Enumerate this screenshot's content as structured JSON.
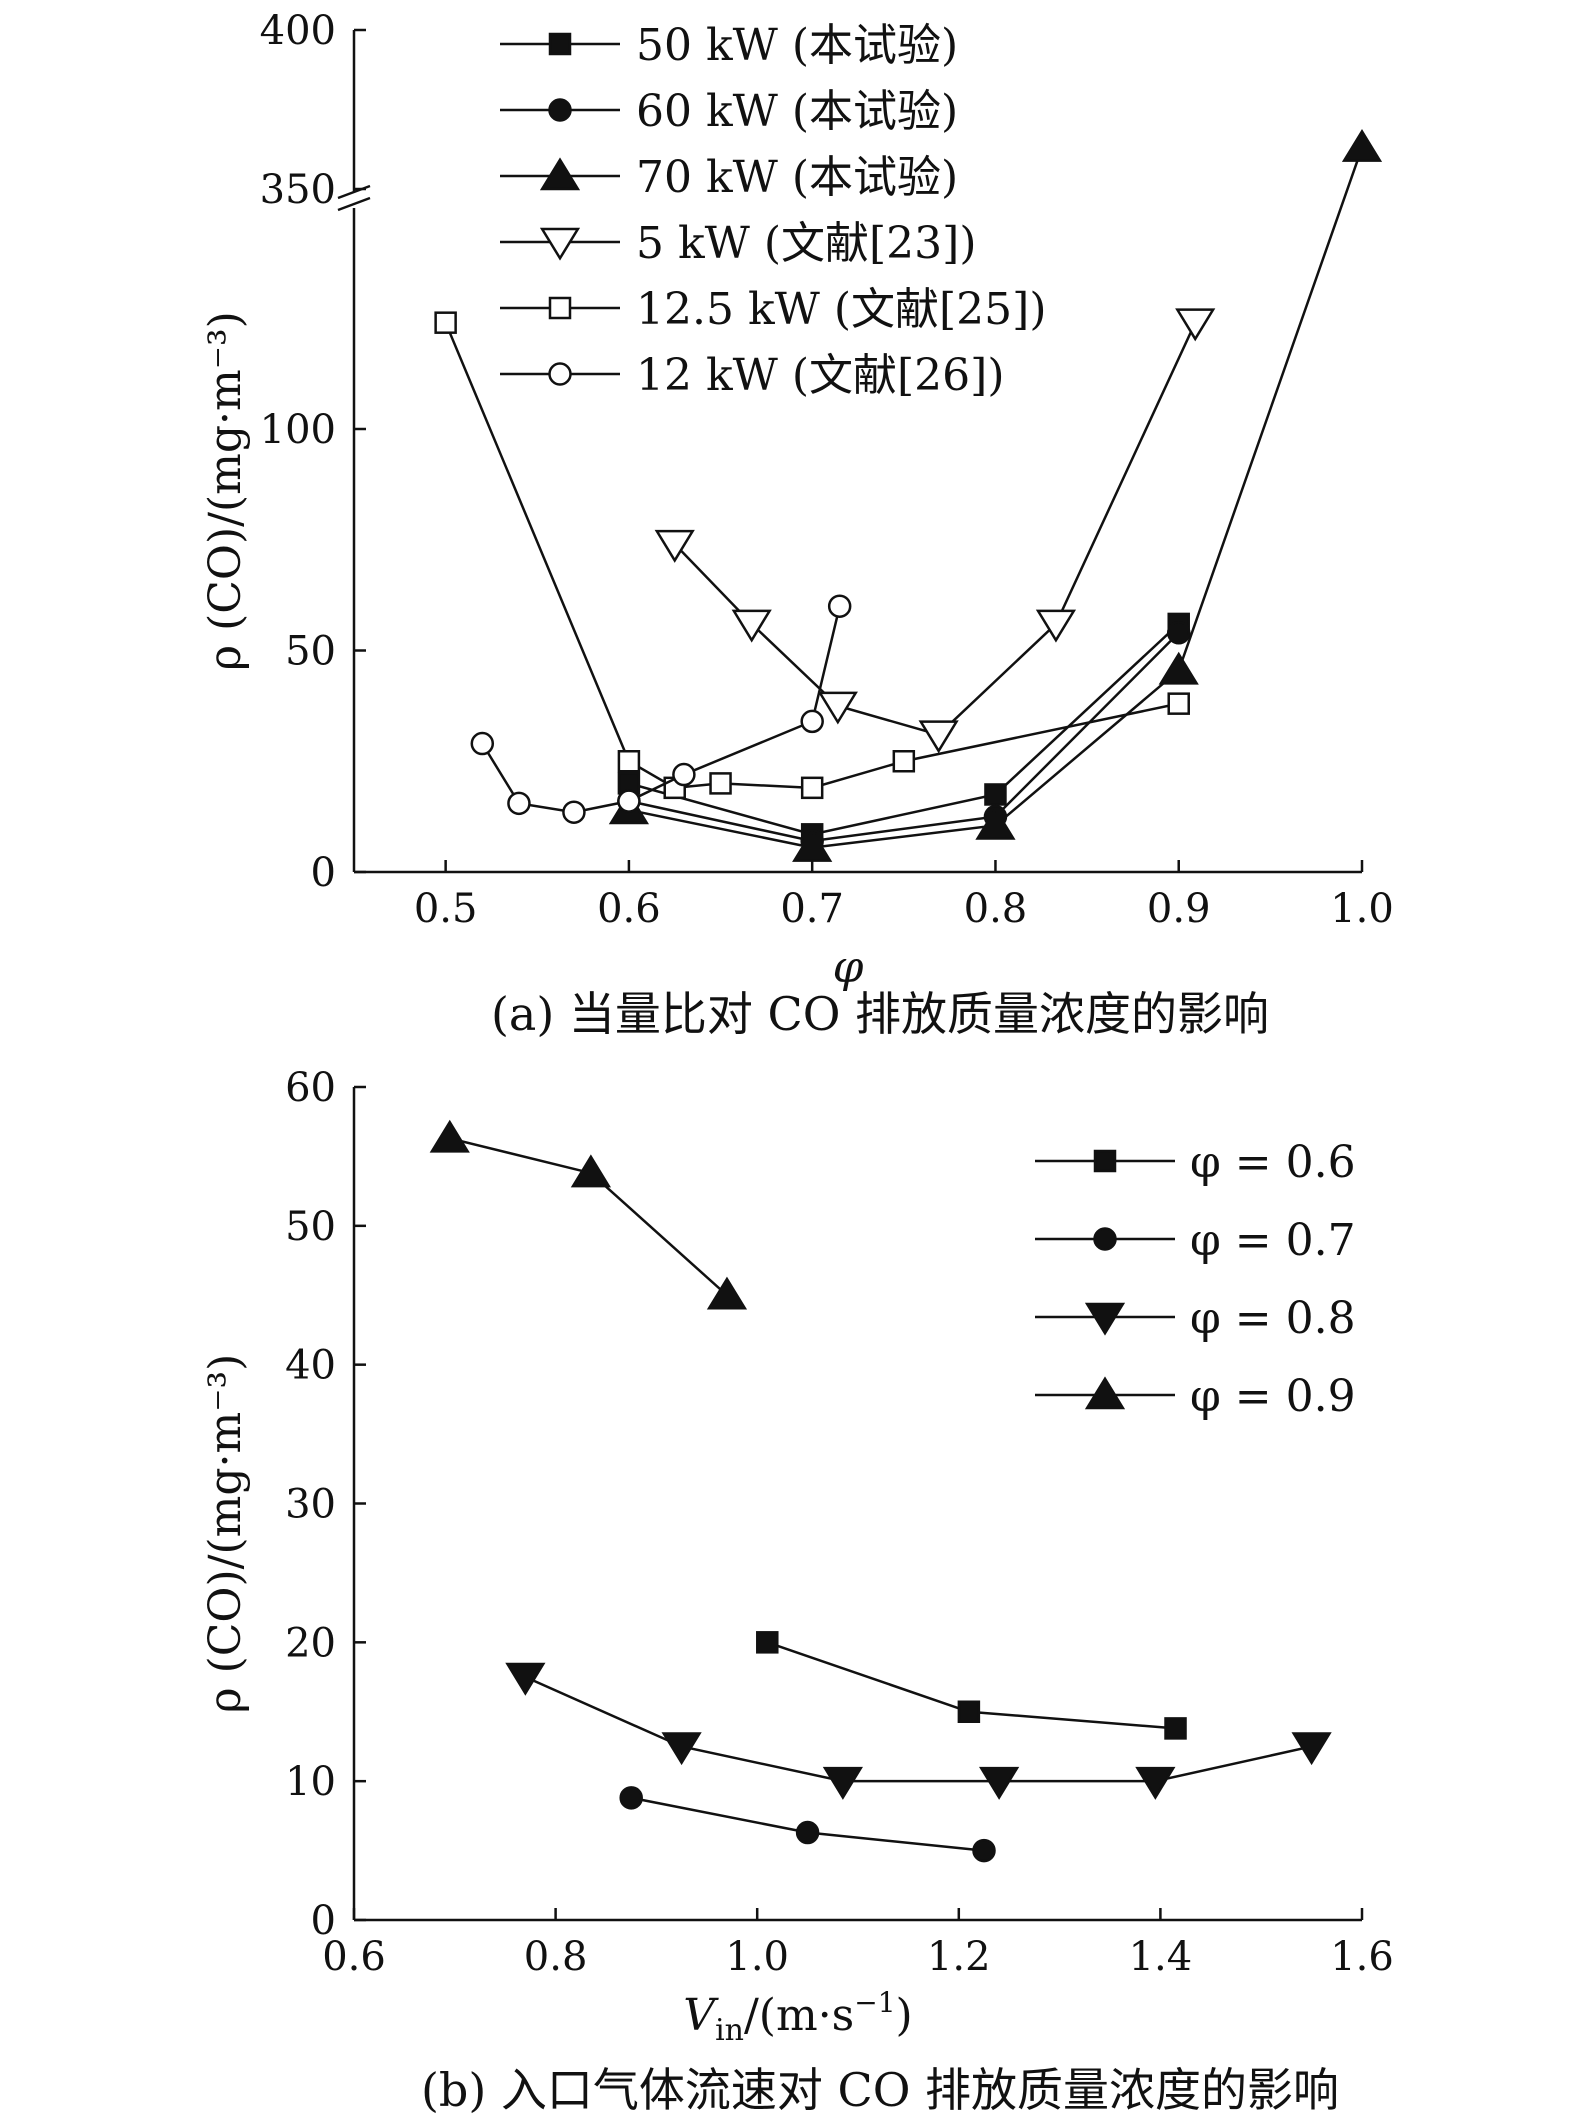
{
  "chart_data": [
    {
      "type": "line",
      "caption": "(a) 当量比对 CO 排放质量浓度的影响",
      "xlabel": "φ",
      "ylabel": "ρ (CO)/(mg·m⁻³)",
      "xlim": [
        0.45,
        1.0
      ],
      "x_ticks": [
        0.5,
        0.6,
        0.7,
        0.8,
        0.9,
        1.0
      ],
      "x_tick_labels": [
        "0.5",
        "0.6",
        "0.7",
        "0.8",
        "0.9",
        "1.0"
      ],
      "ylim_lower": [
        0,
        100
      ],
      "ylim_upper": [
        350,
        400
      ],
      "y_ticks": [
        0,
        50,
        100,
        350,
        400
      ],
      "y_tick_labels": [
        "0",
        "50",
        "100",
        "350",
        "400"
      ],
      "axis_break": true,
      "grid": false,
      "legend_position": "top",
      "series": [
        {
          "name": "50 kW (本试验)",
          "marker": "square-filled",
          "points": [
            [
              0.6,
              20
            ],
            [
              0.7,
              8.5
            ],
            [
              0.8,
              17.5
            ],
            [
              0.9,
              56
            ]
          ]
        },
        {
          "name": "60 kW (本试验)",
          "marker": "circle-filled",
          "points": [
            [
              0.6,
              16
            ],
            [
              0.7,
              7
            ],
            [
              0.8,
              12.5
            ],
            [
              0.9,
              54
            ]
          ]
        },
        {
          "name": "70 kW (本试验)",
          "marker": "triangle-up-filled",
          "points": [
            [
              0.6,
              14
            ],
            [
              0.7,
              5.5
            ],
            [
              0.8,
              10.5
            ],
            [
              0.9,
              45.5
            ],
            [
              1.0,
              363
            ]
          ]
        },
        {
          "name": "5 kW (文献[23])",
          "marker": "triangle-down-open",
          "points": [
            [
              0.625,
              74
            ],
            [
              0.667,
              56
            ],
            [
              0.714,
              37.5
            ],
            [
              0.769,
              31
            ],
            [
              0.833,
              56
            ],
            [
              0.909,
              124
            ]
          ]
        },
        {
          "name": "12.5 kW (文献[25])",
          "marker": "square-open",
          "points": [
            [
              0.5,
              124
            ],
            [
              0.6,
              25
            ],
            [
              0.625,
              19
            ],
            [
              0.65,
              20
            ],
            [
              0.7,
              19
            ],
            [
              0.75,
              25
            ],
            [
              0.9,
              38
            ]
          ]
        },
        {
          "name": "12 kW (文献[26])",
          "marker": "circle-open",
          "points": [
            [
              0.52,
              29
            ],
            [
              0.54,
              15.5
            ],
            [
              0.57,
              13.5
            ],
            [
              0.6,
              16
            ],
            [
              0.63,
              22
            ],
            [
              0.7,
              34
            ],
            [
              0.715,
              60
            ]
          ]
        }
      ]
    },
    {
      "type": "line",
      "caption": "(b) 入口气体流速对 CO 排放质量浓度的影响",
      "xlabel_main": "V",
      "xlabel_sub": "in",
      "xlabel_rest": "/(m·s",
      "xlabel_sup": "−1",
      "xlabel_end": ")",
      "ylabel": "ρ (CO)/(mg·m⁻³)",
      "xlim": [
        0.6,
        1.6
      ],
      "ylim": [
        0,
        60
      ],
      "x_ticks": [
        0.6,
        0.8,
        1.0,
        1.2,
        1.4,
        1.6
      ],
      "x_tick_labels": [
        "0.6",
        "0.8",
        "1.0",
        "1.2",
        "1.4",
        "1.6"
      ],
      "y_ticks": [
        0,
        10,
        20,
        30,
        40,
        50,
        60
      ],
      "y_tick_labels": [
        "0",
        "10",
        "20",
        "30",
        "40",
        "50",
        "60"
      ],
      "grid": false,
      "legend_position": "top-right",
      "series": [
        {
          "name": "φ = 0.6",
          "marker": "square-filled",
          "points": [
            [
              1.01,
              20
            ],
            [
              1.21,
              15
            ],
            [
              1.415,
              13.8
            ]
          ]
        },
        {
          "name": "φ = 0.7",
          "marker": "circle-filled",
          "points": [
            [
              0.875,
              8.8
            ],
            [
              1.05,
              6.3
            ],
            [
              1.225,
              5
            ]
          ]
        },
        {
          "name": "φ = 0.8",
          "marker": "triangle-down-filled",
          "points": [
            [
              0.77,
              17.5
            ],
            [
              0.925,
              12.5
            ],
            [
              1.085,
              10
            ],
            [
              1.24,
              10
            ],
            [
              1.395,
              10
            ],
            [
              1.55,
              12.5
            ]
          ]
        },
        {
          "name": "φ = 0.9",
          "marker": "triangle-up-filled",
          "points": [
            [
              0.695,
              56.3
            ],
            [
              0.835,
              53.8
            ],
            [
              0.97,
              45
            ]
          ]
        }
      ]
    }
  ]
}
